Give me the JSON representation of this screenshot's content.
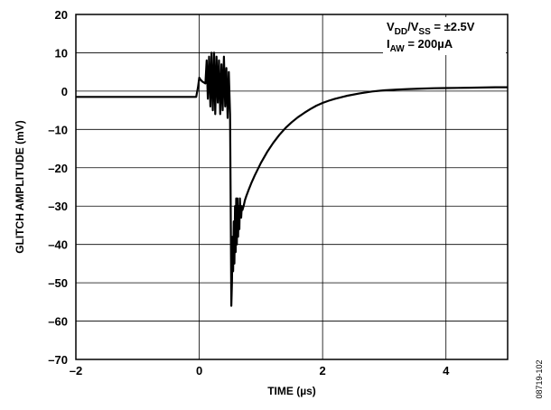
{
  "chart_data": {
    "type": "line",
    "xlabel": "TIME (µs)",
    "ylabel": "GLITCH AMPLITUDE (mV)",
    "xlim": [
      -2,
      5
    ],
    "ylim": [
      -70,
      20
    ],
    "x_ticks": [
      -2,
      0,
      2,
      4
    ],
    "y_ticks": [
      20,
      10,
      0,
      -10,
      -20,
      -30,
      -40,
      -50,
      -60,
      -70
    ],
    "x_tick_labels": [
      "–2",
      "0",
      "2",
      "4"
    ],
    "y_tick_labels": [
      "20",
      "10",
      "0",
      "–10",
      "–20",
      "–30",
      "–40",
      "–50",
      "–60",
      "–70"
    ],
    "grid": true,
    "annotation": {
      "line1": {
        "a": "V",
        "a_sub": "DD",
        "b": "/V",
        "b_sub": "SS",
        "c": " = ±2.5V"
      },
      "line2": {
        "a": "I",
        "a_sub": "AW",
        "c": " = 200µA"
      }
    },
    "figure_id": "08719-102",
    "series": [
      {
        "x": [
          -2.0,
          -1.5,
          -1.0,
          -0.5,
          -0.05,
          -0.02,
          0.0,
          0.02,
          0.05,
          0.1,
          0.12,
          0.14,
          0.16,
          0.18,
          0.2,
          0.22,
          0.24,
          0.26,
          0.28,
          0.3,
          0.32,
          0.34,
          0.36,
          0.38,
          0.4,
          0.42,
          0.44,
          0.46,
          0.48,
          0.5,
          0.51,
          0.52,
          0.53,
          0.54,
          0.55,
          0.56,
          0.57,
          0.58,
          0.59,
          0.6,
          0.61,
          0.62,
          0.63,
          0.64,
          0.65,
          0.66,
          0.67,
          0.68,
          0.69,
          0.7,
          0.72,
          0.74,
          0.76,
          0.8,
          0.85,
          0.9,
          1.0,
          1.1,
          1.2,
          1.3,
          1.4,
          1.5,
          1.6,
          1.7,
          1.8,
          1.9,
          2.0,
          2.1,
          2.2,
          2.4,
          2.6,
          2.8,
          3.0,
          3.2,
          3.4,
          3.6,
          3.8,
          4.0,
          4.2,
          4.4,
          4.6,
          4.8,
          5.0
        ],
        "y": [
          -1.5,
          -1.5,
          -1.5,
          -1.5,
          -1.5,
          1.0,
          3.5,
          3.0,
          2.5,
          2.0,
          8.0,
          -2.0,
          9.0,
          -4.0,
          10.0,
          -5.0,
          10.0,
          -6.0,
          9.0,
          -3.0,
          8.0,
          -6.0,
          7.0,
          -5.0,
          9.0,
          -4.0,
          6.0,
          -7.0,
          5.0,
          -6.0,
          -30.0,
          -56.0,
          -50.0,
          -38.0,
          -47.0,
          -34.0,
          -45.0,
          -30.0,
          -42.0,
          -28.0,
          -40.0,
          -28.0,
          -38.0,
          -30.0,
          -36.0,
          -28.0,
          -32.0,
          -33.0,
          -30.0,
          -31.0,
          -30.0,
          -28.5,
          -27.5,
          -25.8,
          -23.8,
          -22.0,
          -18.7,
          -15.9,
          -13.5,
          -11.4,
          -9.6,
          -8.1,
          -6.8,
          -5.7,
          -4.7,
          -3.8,
          -3.1,
          -2.5,
          -2.0,
          -1.2,
          -0.6,
          -0.1,
          0.2,
          0.4,
          0.55,
          0.65,
          0.75,
          0.8,
          0.85,
          0.9,
          0.95,
          1.0,
          1.0
        ]
      }
    ]
  }
}
